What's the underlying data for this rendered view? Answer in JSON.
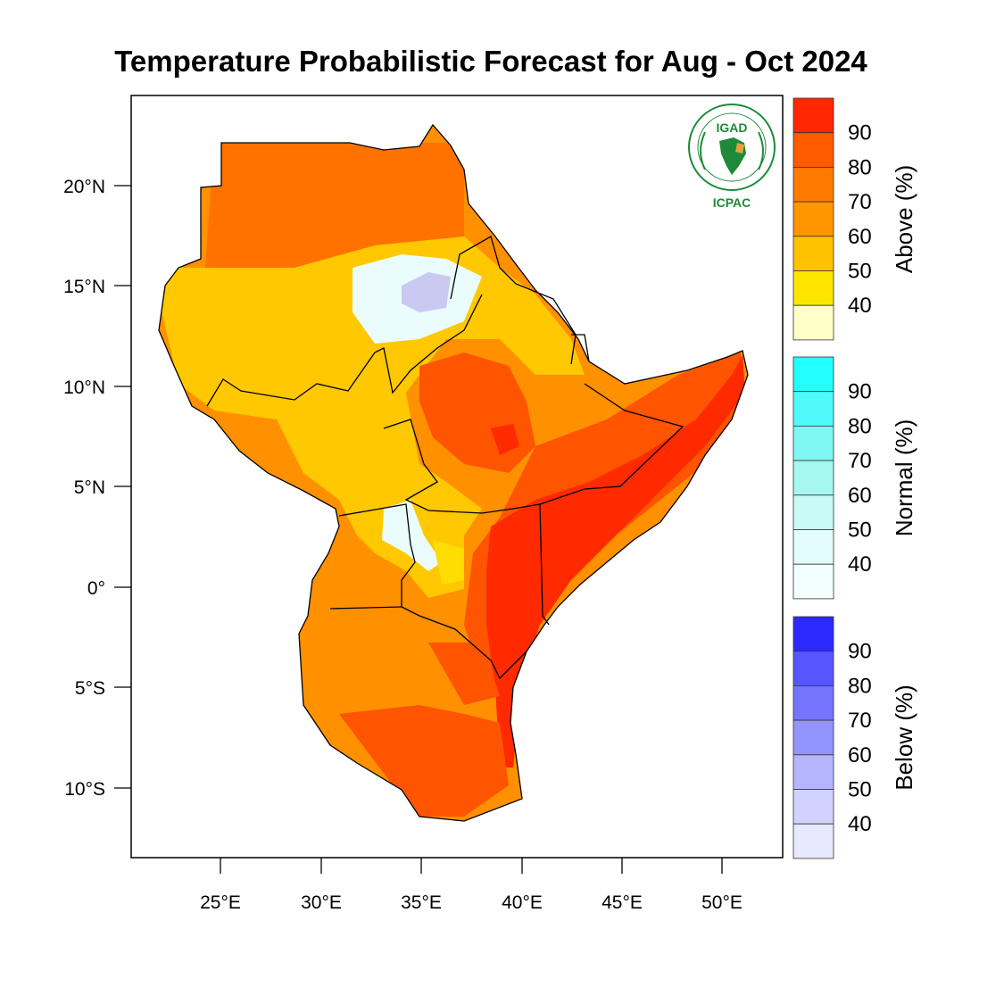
{
  "title": "Temperature Probabilistic Forecast for Aug - Oct 2024",
  "logo": {
    "top_text": "IGAD",
    "bottom_text": "ICPAC",
    "ring_text": "INTERGOVERNMENTAL AUTHORITY ON DEVELOPMENT",
    "color": "#1d8a3a"
  },
  "axes": {
    "lat_ticks": [
      "20°N",
      "15°N",
      "10°N",
      "5°N",
      "0°",
      "5°S",
      "10°S"
    ],
    "lon_ticks": [
      "25°E",
      "30°E",
      "35°E",
      "40°E",
      "45°E",
      "50°E"
    ]
  },
  "colorbars": [
    {
      "title": "Above (%)",
      "labels": [
        "90",
        "80",
        "70",
        "60",
        "50",
        "40"
      ],
      "colors": [
        "#ff2600",
        "#ff5a00",
        "#ff7a00",
        "#ff9600",
        "#ffc200",
        "#ffe600",
        "#ffffc8"
      ]
    },
    {
      "title": "Normal (%)",
      "labels": [
        "90",
        "80",
        "70",
        "60",
        "50",
        "40"
      ],
      "colors": [
        "#22ffff",
        "#4ffafa",
        "#7ef7f2",
        "#a6f7f0",
        "#c8fbf6",
        "#e2fdfb",
        "#f2fffe"
      ]
    },
    {
      "title": "Below (%)",
      "labels": [
        "90",
        "80",
        "70",
        "60",
        "50",
        "40"
      ],
      "colors": [
        "#2a2aff",
        "#5656ff",
        "#7474ff",
        "#9494ff",
        "#b6b6ff",
        "#d2d2ff",
        "#e8e8ff"
      ]
    }
  ],
  "map_colors": {
    "above_40_50": "#ffc800",
    "above_50_60": "#ffdd00",
    "above_60_70": "#ff9000",
    "above_70_80": "#ff7200",
    "above_80_90": "#ff5400",
    "above_90": "#ff2a00",
    "normal_40_50": "#eafcfc",
    "below_40_50": "#c9c9f2",
    "borders": "#000000",
    "ocean": "#ffffff"
  }
}
